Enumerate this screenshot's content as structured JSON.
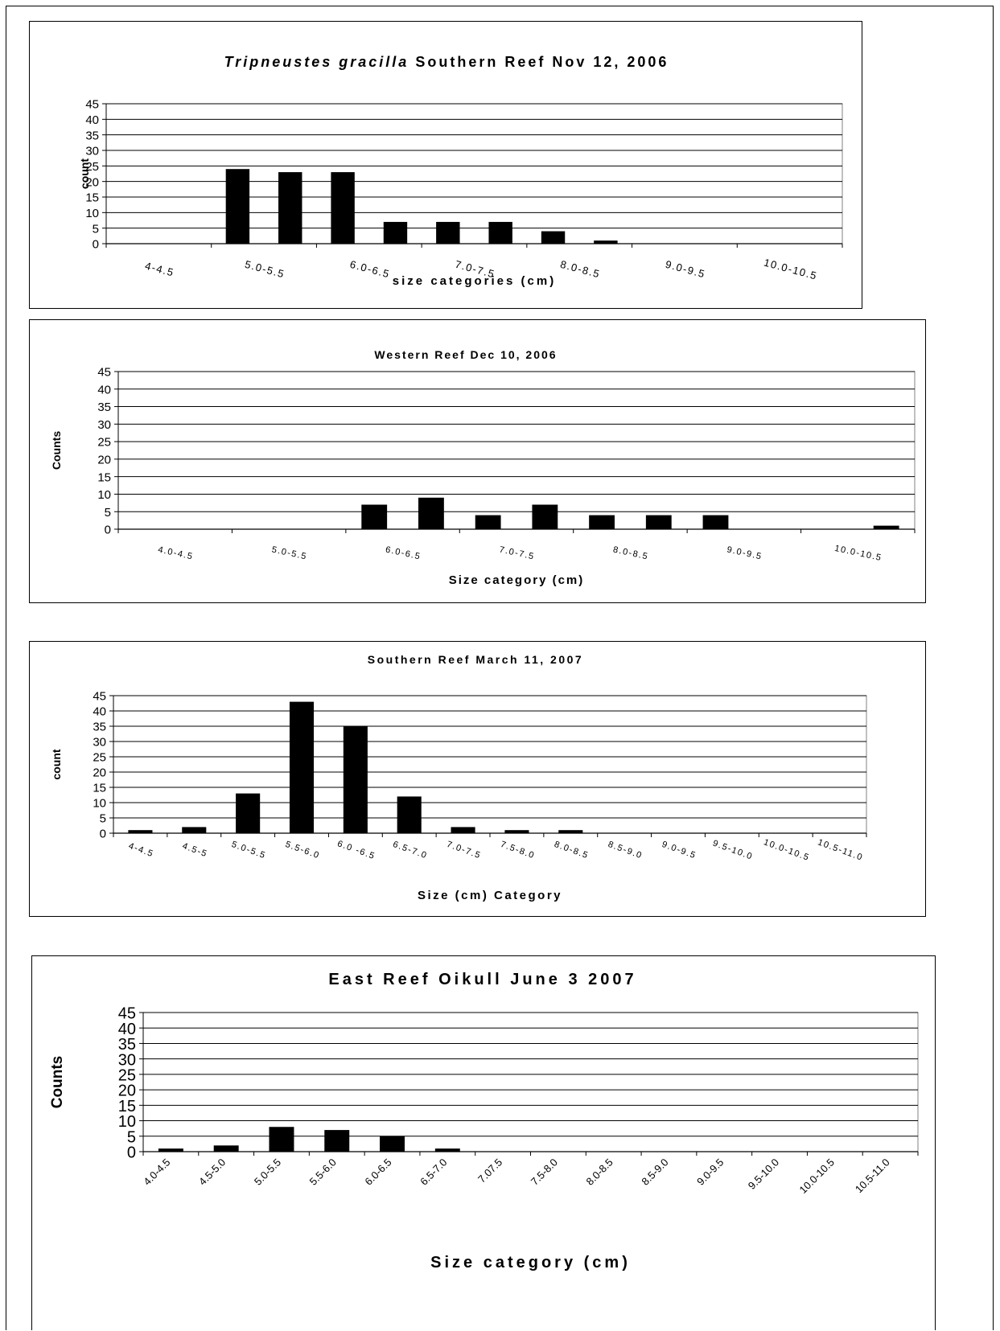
{
  "chart_data": [
    {
      "type": "bar",
      "title_italic": "Tripneustes gracilla",
      "title": "Southern Reef Nov 12, 2006",
      "xlabel": "size categories (cm)",
      "ylabel": "count",
      "ylim": [
        0,
        45
      ],
      "yticks": [
        "0",
        "5",
        "10",
        "15",
        "20",
        "25",
        "30",
        "35",
        "40",
        "45"
      ],
      "grid": true,
      "categories": [
        "4-4.5",
        "",
        "5.0-5.5",
        "",
        "6.0-6.5",
        "",
        "7.0-7.5",
        "",
        "8.0-8.5",
        "",
        "9.0-9.5",
        "",
        "10.0-10.5",
        ""
      ],
      "values": [
        0,
        0,
        24,
        23,
        23,
        7,
        7,
        7,
        4,
        1,
        0,
        0,
        0,
        0
      ]
    },
    {
      "type": "bar",
      "title": "Western Reef Dec 10, 2006",
      "xlabel": "Size category (cm)",
      "ylabel": "Counts",
      "ylim": [
        0,
        45
      ],
      "yticks": [
        "0",
        "5",
        "10",
        "15",
        "20",
        "25",
        "30",
        "35",
        "40",
        "45"
      ],
      "grid": true,
      "categories": [
        "4.0-4.5",
        "",
        "5.0-5.5",
        "",
        "6.0-6.5",
        "",
        "7.0-7.5",
        "",
        "8.0-8.5",
        "",
        "9.0-9.5",
        "",
        "10.0-10.5",
        ""
      ],
      "values": [
        0,
        0,
        0,
        0,
        7,
        9,
        4,
        7,
        4,
        4,
        4,
        0,
        0,
        1
      ]
    },
    {
      "type": "bar",
      "title": "Southern Reef March 11, 2007",
      "xlabel": "Size (cm) Category",
      "ylabel": "count",
      "ylim": [
        0,
        45
      ],
      "yticks": [
        "0",
        "5",
        "10",
        "15",
        "20",
        "25",
        "30",
        "35",
        "40",
        "45"
      ],
      "grid": true,
      "categories": [
        "4-4.5",
        "4.5-5",
        "5.0-5.5",
        "5.5-6.0",
        "6.0 -6.5",
        "6.5-7.0",
        "7.0-7.5",
        "7.5-8.0",
        "8.0-8.5",
        "8.5-9.0",
        "9.0-9.5",
        "9.5-10.0",
        "10.0-10.5",
        "10.5-11.0"
      ],
      "values": [
        1,
        2,
        13,
        43,
        35,
        12,
        2,
        1,
        1,
        0,
        0,
        0,
        0,
        0
      ]
    },
    {
      "type": "bar",
      "title": "East Reef Oikull June 3  2007",
      "xlabel": "Size category (cm)",
      "ylabel": "Counts",
      "ylim": [
        0,
        45
      ],
      "yticks": [
        "0",
        "5",
        "10",
        "15",
        "20",
        "25",
        "30",
        "35",
        "40",
        "45"
      ],
      "grid": true,
      "categories": [
        "4.0-4.5",
        "4.5-5.0",
        "5.0-5.5",
        "5.5-6.0",
        "6.0-6.5",
        "6.5-7.0",
        "7.07.5",
        "7.5-8.0",
        "8.0-8.5",
        "8.5-9.0",
        "9.0-9.5",
        "9.5-10.0",
        "10.0-10.5",
        "10.5-11.0"
      ],
      "values": [
        1,
        2,
        8,
        7,
        5,
        1,
        0,
        0,
        0,
        0,
        0,
        0,
        0,
        0
      ]
    }
  ]
}
